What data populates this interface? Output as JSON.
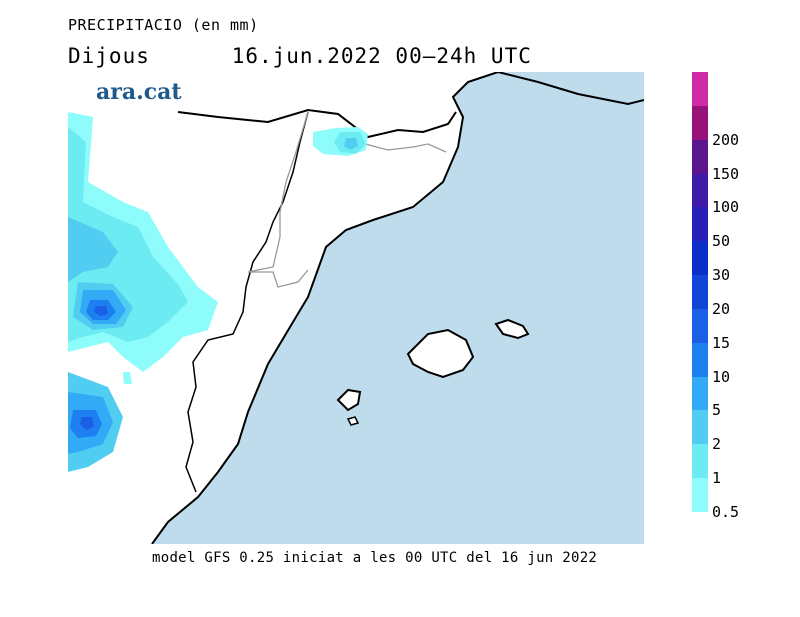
{
  "title": "PRECIPITACIO (en mm)",
  "subtitle": {
    "day": "Dijous",
    "period": "16.jun.2022 00–24h UTC"
  },
  "logo": "ara.cat",
  "footer": "model GFS 0.25 iniciat a les 00 UTC del 16 jun 2022",
  "legend": {
    "bins": [
      {
        "label": "0.5",
        "color": "#8ffcfc"
      },
      {
        "label": "1",
        "color": "#6cecf2"
      },
      {
        "label": "2",
        "color": "#52cdf2"
      },
      {
        "label": "5",
        "color": "#33aaf5"
      },
      {
        "label": "10",
        "color": "#1e7ff0"
      },
      {
        "label": "15",
        "color": "#1a5fe5"
      },
      {
        "label": "20",
        "color": "#1244d8"
      },
      {
        "label": "30",
        "color": "#0b2ec8"
      },
      {
        "label": "50",
        "color": "#2a1fb8"
      },
      {
        "label": "100",
        "color": "#3d1aa8"
      },
      {
        "label": "150",
        "color": "#5a158f"
      },
      {
        "label": "200",
        "color": "#99127a"
      },
      {
        "label": "",
        "color": "#d12aa7"
      }
    ]
  },
  "colors": {
    "sea": "#bedcec",
    "land": "#ffffff",
    "coast": "#000000",
    "border": "#999999"
  }
}
